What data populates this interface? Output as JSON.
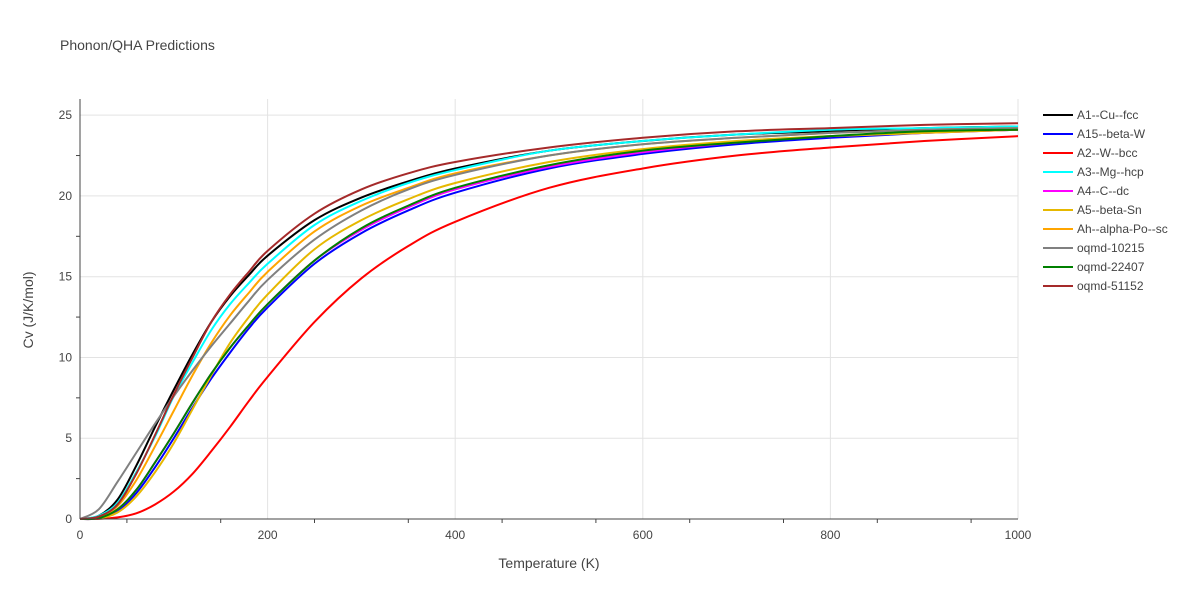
{
  "chart_data": {
    "type": "line",
    "title": "Phonon/QHA Predictions",
    "xlabel": "Temperature (K)",
    "ylabel": "Cv (J/K/mol)",
    "xlim": [
      0,
      1000
    ],
    "ylim": [
      0,
      26
    ],
    "xticks": [
      0,
      200,
      400,
      600,
      800,
      1000
    ],
    "yticks": [
      0,
      5,
      10,
      15,
      20,
      25
    ],
    "grid": true,
    "legend_position": "right",
    "x": [
      0,
      20,
      40,
      60,
      80,
      100,
      120,
      140,
      160,
      180,
      200,
      250,
      300,
      350,
      400,
      500,
      600,
      700,
      800,
      900,
      1000
    ],
    "series": [
      {
        "name": "A1--Cu--fcc",
        "color": "#000000",
        "values": [
          0,
          0.2,
          1.2,
          3.3,
          5.7,
          8.0,
          10.2,
          12.2,
          13.8,
          15.1,
          16.3,
          18.5,
          19.9,
          20.9,
          21.7,
          22.8,
          23.4,
          23.8,
          24.0,
          24.2,
          24.3
        ]
      },
      {
        "name": "A15--beta-W",
        "color": "#0000ff",
        "values": [
          0,
          0.05,
          0.5,
          1.6,
          3.2,
          5.0,
          6.9,
          8.7,
          10.3,
          11.8,
          13.1,
          15.8,
          17.7,
          19.1,
          20.2,
          21.7,
          22.6,
          23.2,
          23.6,
          23.9,
          24.1
        ]
      },
      {
        "name": "A2--W--bcc",
        "color": "#ff0000",
        "values": [
          0,
          0.01,
          0.1,
          0.35,
          0.9,
          1.7,
          2.8,
          4.2,
          5.7,
          7.3,
          8.8,
          12.2,
          14.9,
          16.9,
          18.4,
          20.5,
          21.7,
          22.5,
          23.0,
          23.4,
          23.7
        ]
      },
      {
        "name": "A3--Mg--hcp",
        "color": "#00ffff",
        "values": [
          0,
          0.2,
          1.0,
          2.9,
          5.1,
          7.6,
          9.7,
          11.7,
          13.3,
          14.6,
          15.8,
          18.2,
          19.7,
          20.8,
          21.6,
          22.8,
          23.4,
          23.8,
          24.1,
          24.2,
          24.3
        ]
      },
      {
        "name": "A4--C--dc",
        "color": "#ff00ff",
        "values": [
          0,
          0.05,
          0.6,
          1.8,
          3.5,
          5.3,
          7.2,
          9.0,
          10.6,
          12.0,
          13.3,
          16.0,
          17.9,
          19.3,
          20.4,
          21.8,
          22.7,
          23.3,
          23.7,
          23.9,
          24.1
        ]
      },
      {
        "name": "A5--beta-Sn",
        "color": "#e6b800",
        "values": [
          0,
          0.04,
          0.4,
          1.4,
          2.9,
          4.7,
          6.8,
          8.9,
          10.9,
          12.5,
          13.9,
          16.7,
          18.5,
          19.8,
          20.8,
          22.1,
          22.9,
          23.4,
          23.7,
          23.9,
          24.1
        ]
      },
      {
        "name": "Ah--alpha-Po--sc",
        "color": "#ffa500",
        "values": [
          0,
          0.1,
          0.8,
          2.4,
          4.5,
          6.7,
          8.9,
          10.9,
          12.6,
          14.0,
          15.3,
          17.8,
          19.4,
          20.5,
          21.4,
          22.5,
          23.2,
          23.6,
          23.9,
          24.1,
          24.2
        ]
      },
      {
        "name": "oqmd-10215",
        "color": "#808080",
        "values": [
          0,
          0.6,
          2.3,
          4.1,
          5.9,
          7.6,
          9.2,
          10.7,
          12.1,
          13.5,
          14.8,
          17.3,
          19.1,
          20.4,
          21.3,
          22.5,
          23.2,
          23.6,
          23.9,
          24.1,
          24.2
        ]
      },
      {
        "name": "oqmd-22407",
        "color": "#008000",
        "values": [
          0,
          0.05,
          0.6,
          1.8,
          3.5,
          5.3,
          7.2,
          9.0,
          10.6,
          12.0,
          13.3,
          16.0,
          18.0,
          19.4,
          20.5,
          21.9,
          22.8,
          23.3,
          23.7,
          24.0,
          24.1
        ]
      },
      {
        "name": "oqmd-51152",
        "color": "#a52a2a",
        "values": [
          0,
          0.15,
          0.9,
          2.8,
          5.2,
          7.7,
          10.0,
          12.2,
          13.9,
          15.3,
          16.6,
          18.9,
          20.4,
          21.4,
          22.1,
          23.0,
          23.6,
          24.0,
          24.2,
          24.4,
          24.5
        ]
      }
    ]
  }
}
